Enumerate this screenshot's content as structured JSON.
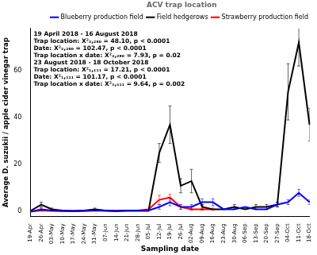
{
  "chart_data": {
    "type": "line",
    "x_label": "Sampling date",
    "y_label": "Average D. suzukii / apple cider vinegar trap",
    "legend_title": "ACV trap location",
    "legend": "top",
    "grid": false,
    "annotations": [
      "19 April 2018 - 16 August 2018",
      "Trap location: X²₂,₂₈₀ = 48.10, p < 0.0001",
      "Date: X²₂,₂₈₀ = 102.47, p < 0.0001",
      "Trap location x date: X²₂,₂₈₀ = 7.93, p = 0.02",
      "23 August 2018 - 18 October 2018",
      "Trap location: X²₁,₁₁₁ = 17.21, p < 0.0001",
      "Date: X²₁,₁₁₁ = 101.17, p < 0.0001",
      "Trap location x date: X²₁,₁₁₁ = 9.64, p = 0.002"
    ],
    "categories": [
      "19-Apr",
      "26-Apr",
      "03-May",
      "10-May",
      "17-May",
      "24-May",
      "31-May",
      "07-Jun",
      "14-Jun",
      "21-Jun",
      "28-Jun",
      "05-Jul",
      "12-Jul",
      "19-Jul",
      "26-Jul",
      "02-Aug",
      "09-Aug",
      "16-Aug",
      "23-Aug",
      "30-Aug",
      "06-Sep",
      "13-Sep",
      "20-Sep",
      "27-Sep",
      "04-Oct",
      "11-Oct",
      "18-Oct"
    ],
    "ylim": [
      -2,
      78
    ],
    "yticks": [
      0,
      20,
      40,
      60
    ],
    "series": [
      {
        "name": "Blueberry production field",
        "color": "#0000ff",
        "values": [
          0,
          1,
          0.5,
          0.3,
          0.2,
          0.3,
          0.5,
          0.3,
          0.2,
          0.3,
          0.3,
          0.5,
          2,
          4,
          2,
          2,
          4,
          4,
          1,
          1,
          2,
          1,
          1,
          3,
          4,
          8,
          4
        ],
        "errors": [
          null,
          0.5,
          null,
          null,
          null,
          null,
          null,
          null,
          null,
          null,
          null,
          null,
          1,
          1.5,
          1,
          1,
          1.5,
          1.5,
          null,
          null,
          null,
          null,
          null,
          1,
          1,
          1.5,
          1
        ]
      },
      {
        "name": "Field hedgerows",
        "color": "#000000",
        "values": [
          0.3,
          3,
          1,
          0.5,
          0.3,
          0.5,
          1,
          0.5,
          0.3,
          0.5,
          0.5,
          0.3,
          25,
          37,
          11,
          13,
          2,
          1,
          1,
          2,
          1,
          2,
          2,
          3,
          51,
          72,
          37
        ],
        "errors": [
          null,
          1,
          0.5,
          null,
          null,
          null,
          0.5,
          null,
          null,
          null,
          null,
          null,
          4,
          8,
          3,
          5,
          1,
          null,
          null,
          1,
          null,
          1,
          1,
          1,
          12,
          10,
          7
        ]
      },
      {
        "name": "Strawberry production field",
        "color": "#ff0000",
        "values": [
          0,
          0.5,
          0.3,
          0.2,
          0.2,
          0.3,
          0.5,
          0.5,
          0.3,
          0.5,
          0.5,
          1,
          5,
          6,
          2,
          1,
          1,
          1,
          null,
          null,
          null,
          null,
          null,
          null,
          null,
          null,
          null
        ],
        "errors": [
          null,
          null,
          null,
          null,
          null,
          null,
          null,
          null,
          null,
          null,
          null,
          null,
          2,
          1.5,
          1,
          0.5,
          0.5,
          0.5,
          null,
          null,
          null,
          null,
          null,
          null,
          null,
          null,
          null
        ]
      }
    ]
  }
}
